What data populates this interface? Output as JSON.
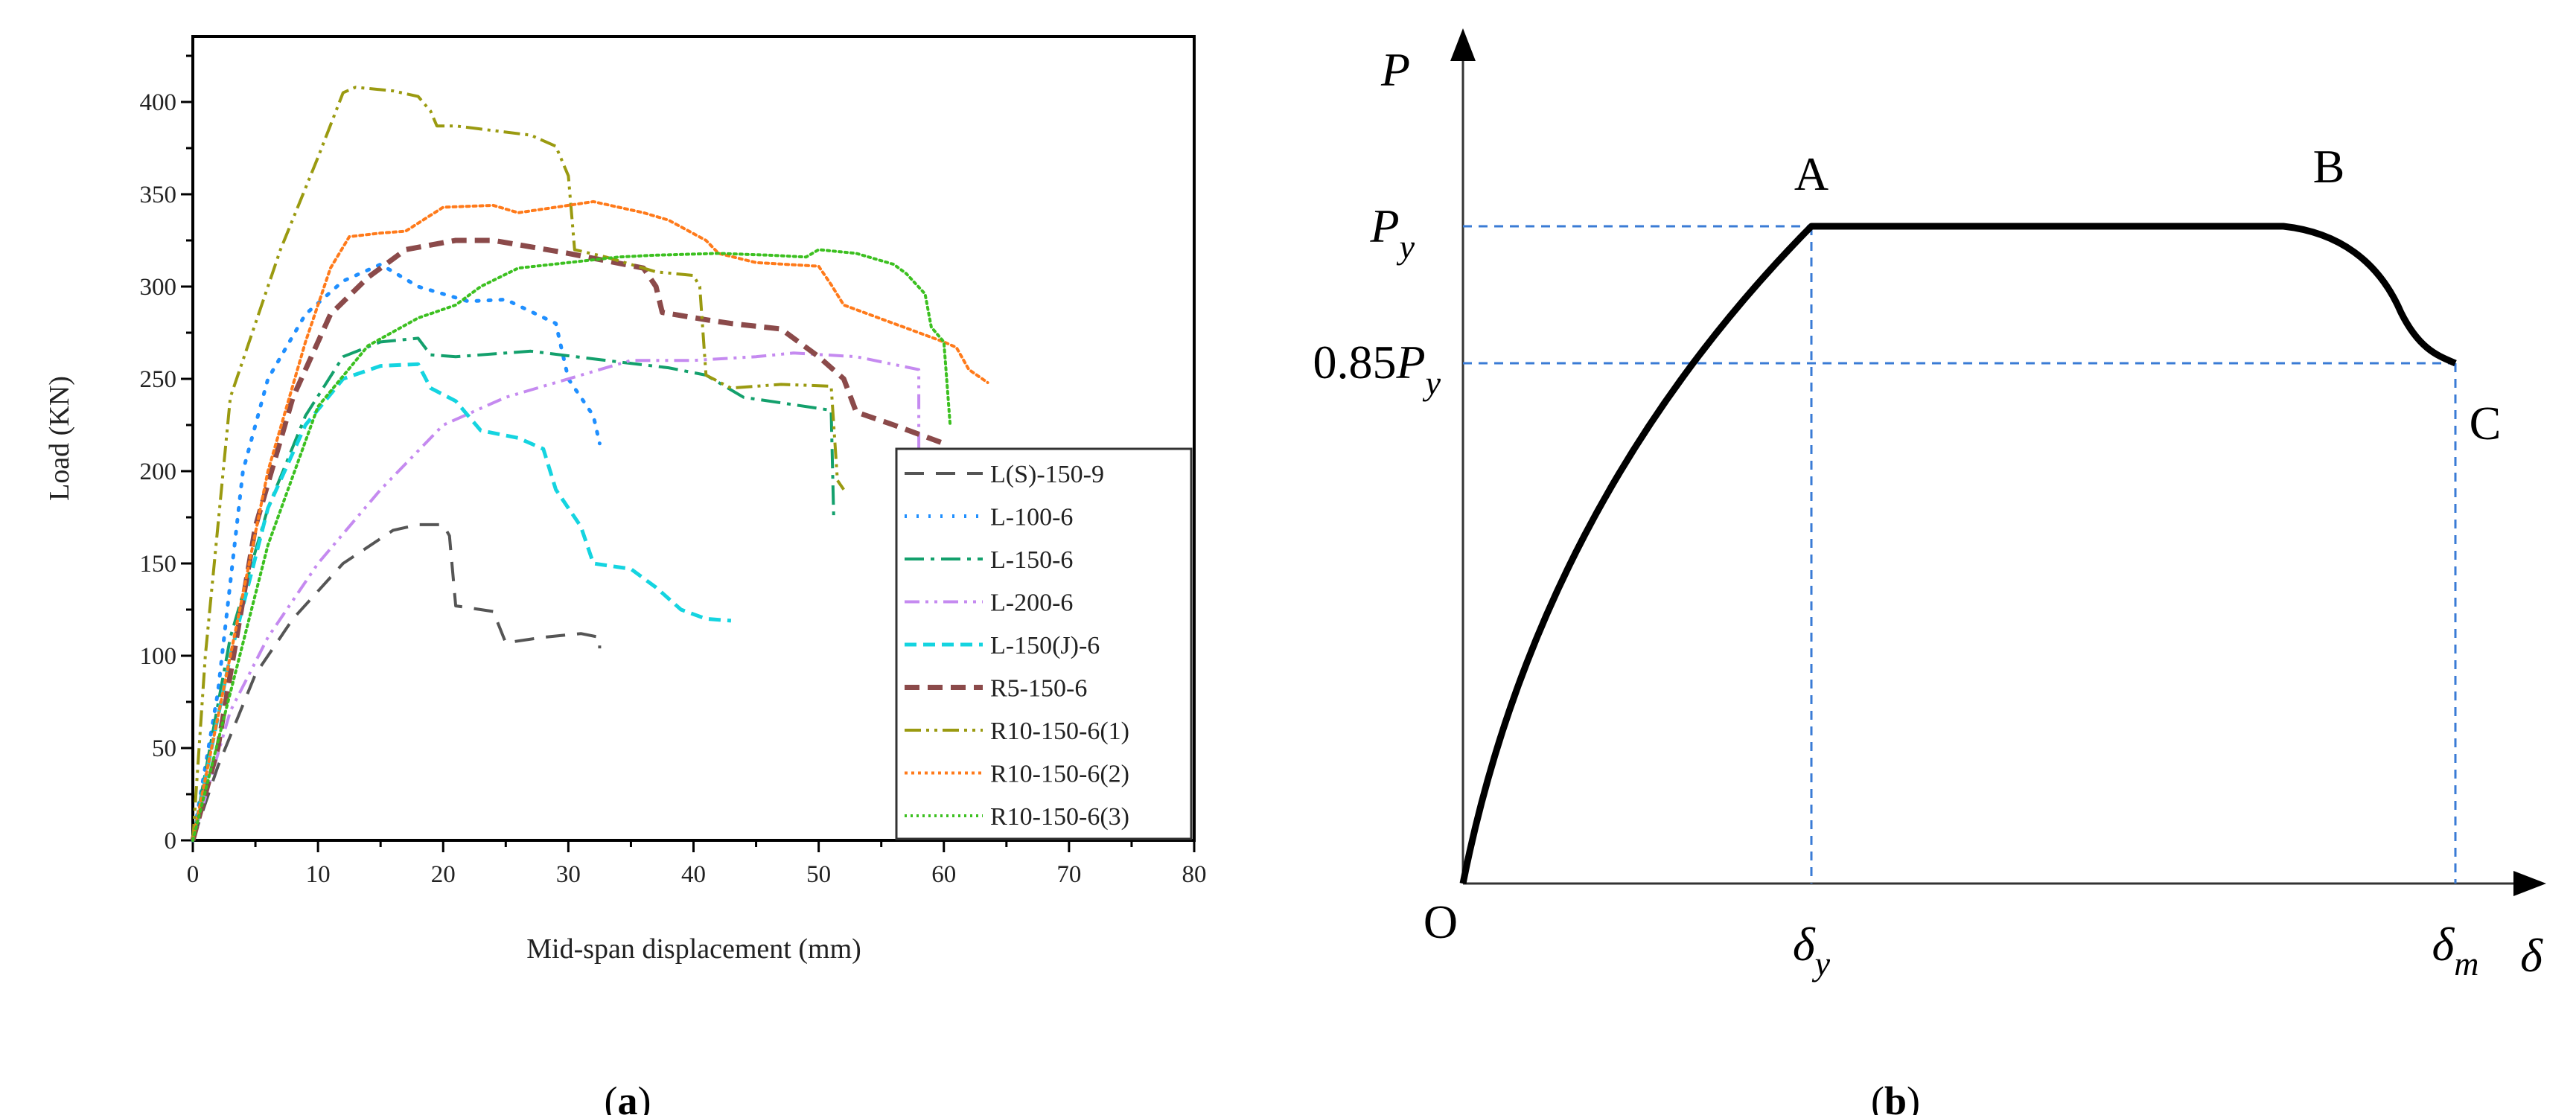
{
  "chart_data": [
    {
      "type": "line",
      "panel_label": "a",
      "title": "",
      "xlabel": "Mid-span displacement (mm)",
      "ylabel": "Load (KN)",
      "xlim": [
        0,
        80
      ],
      "ylim": [
        0,
        410
      ],
      "xticks": [
        0,
        10,
        20,
        30,
        40,
        50,
        60,
        70,
        80
      ],
      "yticks": [
        0,
        50,
        100,
        150,
        200,
        250,
        300,
        350,
        400
      ],
      "grid": false,
      "legend_position": "bottom-right",
      "series": [
        {
          "name": "L(S)-150-9",
          "color": "#555555",
          "dash": "26 16",
          "width": 4,
          "points": [
            [
              0,
              0
            ],
            [
              2,
              40
            ],
            [
              5,
              90
            ],
            [
              8,
              120
            ],
            [
              12,
              150
            ],
            [
              16,
              168
            ],
            [
              18,
              171
            ],
            [
              20,
              171
            ],
            [
              20.5,
              165
            ],
            [
              21,
              127
            ],
            [
              24,
              124
            ],
            [
              25,
              107
            ],
            [
              28,
              110
            ],
            [
              31,
              112
            ],
            [
              32.5,
              110
            ],
            [
              32.5,
              104
            ]
          ]
        },
        {
          "name": "L-100-6",
          "color": "#1f8fff",
          "dash": "3 13",
          "width": 5,
          "points": [
            [
              0,
              0
            ],
            [
              2,
              80
            ],
            [
              4,
              200
            ],
            [
              6,
              250
            ],
            [
              9,
              285
            ],
            [
              12,
              303
            ],
            [
              15,
              312
            ],
            [
              18,
              300
            ],
            [
              22,
              292
            ],
            [
              25,
              293
            ],
            [
              29,
              280
            ],
            [
              30,
              250
            ],
            [
              32,
              230
            ],
            [
              32.5,
              215
            ]
          ]
        },
        {
          "name": "L-150-6",
          "color": "#13a06c",
          "dash": "26 9 5 9",
          "width": 4,
          "points": [
            [
              0,
              0
            ],
            [
              3,
              110
            ],
            [
              6,
              180
            ],
            [
              9,
              230
            ],
            [
              12,
              262
            ],
            [
              15,
              270
            ],
            [
              18,
              272
            ],
            [
              19,
              263
            ],
            [
              21,
              262
            ],
            [
              27,
              265
            ],
            [
              33,
              260
            ],
            [
              38,
              256
            ],
            [
              41,
              252
            ],
            [
              44,
              240
            ],
            [
              48,
              236
            ],
            [
              51,
              233
            ],
            [
              51.2,
              175
            ]
          ]
        },
        {
          "name": "L-200-6",
          "color": "#c58af0",
          "dash": "20 8 4 8 4 8",
          "width": 4,
          "points": [
            [
              0,
              0
            ],
            [
              3,
              70
            ],
            [
              6,
              110
            ],
            [
              10,
              150
            ],
            [
              15,
              190
            ],
            [
              20,
              225
            ],
            [
              25,
              240
            ],
            [
              30,
              250
            ],
            [
              35,
              260
            ],
            [
              40,
              260
            ],
            [
              45,
              262
            ],
            [
              48,
              264
            ],
            [
              53,
              262
            ],
            [
              58,
              255
            ],
            [
              58,
              195
            ]
          ]
        },
        {
          "name": "L-150(J)-6",
          "color": "#14d4e0",
          "dash": "16 9",
          "width": 5,
          "points": [
            [
              0,
              0
            ],
            [
              3,
              100
            ],
            [
              6,
              180
            ],
            [
              9,
              225
            ],
            [
              12,
              250
            ],
            [
              15,
              257
            ],
            [
              18,
              258
            ],
            [
              19,
              245
            ],
            [
              21,
              238
            ],
            [
              23,
              222
            ],
            [
              26,
              218
            ],
            [
              28,
              212
            ],
            [
              29,
              190
            ],
            [
              31,
              170
            ],
            [
              32,
              150
            ],
            [
              35,
              147
            ],
            [
              37,
              137
            ],
            [
              39,
              125
            ],
            [
              41,
              120
            ],
            [
              43,
              119
            ]
          ]
        },
        {
          "name": "R5-150-6",
          "color": "#8b4a4a",
          "dash": "20 11",
          "width": 7,
          "points": [
            [
              0,
              0
            ],
            [
              2,
              50
            ],
            [
              5,
              170
            ],
            [
              8,
              240
            ],
            [
              11,
              285
            ],
            [
              14,
              305
            ],
            [
              17,
              320
            ],
            [
              21,
              325
            ],
            [
              24,
              325
            ],
            [
              30,
              318
            ],
            [
              36,
              310
            ],
            [
              37,
              300
            ],
            [
              37.5,
              286
            ],
            [
              41,
              282
            ],
            [
              43,
              280
            ],
            [
              47,
              277
            ],
            [
              50,
              262
            ],
            [
              52,
              250
            ],
            [
              53,
              232
            ],
            [
              56,
              225
            ],
            [
              60,
              215
            ]
          ]
        },
        {
          "name": "R10-150-6(1)",
          "color": "#9a9a10",
          "dash": "22 7 4 7 4 7",
          "width": 4,
          "points": [
            [
              0,
              0
            ],
            [
              1,
              100
            ],
            [
              3,
              240
            ],
            [
              7,
              320
            ],
            [
              10,
              370
            ],
            [
              12,
              405
            ],
            [
              13,
              408
            ],
            [
              16,
              406
            ],
            [
              18,
              403
            ],
            [
              19,
              395
            ],
            [
              19.5,
              387
            ],
            [
              21,
              387
            ],
            [
              27,
              382
            ],
            [
              29,
              376
            ],
            [
              30,
              360
            ],
            [
              30.5,
              320
            ],
            [
              33,
              316
            ],
            [
              37,
              308
            ],
            [
              40,
              306
            ],
            [
              40.5,
              300
            ],
            [
              41,
              252
            ],
            [
              43,
              245
            ],
            [
              47,
              247
            ],
            [
              51,
              246
            ],
            [
              51.5,
              195
            ],
            [
              52,
              190
            ]
          ]
        },
        {
          "name": "R10-150-6(2)",
          "color": "#ff7a1a",
          "dash": "4 5",
          "width": 4,
          "points": [
            [
              0,
              0
            ],
            [
              3,
              100
            ],
            [
              6,
              200
            ],
            [
              9,
              270
            ],
            [
              11,
              310
            ],
            [
              12.5,
              327
            ],
            [
              15,
              329
            ],
            [
              17,
              330
            ],
            [
              20,
              343
            ],
            [
              24,
              344
            ],
            [
              26,
              340
            ],
            [
              30,
              344
            ],
            [
              32,
              346
            ],
            [
              36,
              340
            ],
            [
              38,
              336
            ],
            [
              41,
              325
            ],
            [
              42,
              318
            ],
            [
              45,
              313
            ],
            [
              50,
              311
            ],
            [
              51,
              301
            ],
            [
              52,
              290
            ],
            [
              56,
              280
            ],
            [
              60,
              270
            ],
            [
              61,
              267
            ],
            [
              62,
              255
            ],
            [
              63.5,
              248
            ]
          ]
        },
        {
          "name": "R10-150-6(3)",
          "color": "#3cc020",
          "dash": "3 5",
          "width": 4,
          "points": [
            [
              0,
              0
            ],
            [
              3,
              80
            ],
            [
              6,
              160
            ],
            [
              10,
              235
            ],
            [
              14,
              268
            ],
            [
              18,
              283
            ],
            [
              21,
              290
            ],
            [
              23,
              300
            ],
            [
              26,
              310
            ],
            [
              30,
              313
            ],
            [
              34,
              316
            ],
            [
              37,
              317
            ],
            [
              42,
              318
            ],
            [
              46,
              317
            ],
            [
              49,
              316
            ],
            [
              50,
              320
            ],
            [
              53,
              318
            ],
            [
              56,
              312
            ],
            [
              57,
              307
            ],
            [
              58.5,
              296
            ],
            [
              59,
              278
            ],
            [
              60,
              270
            ],
            [
              60.5,
              225
            ]
          ]
        }
      ]
    },
    {
      "type": "diagram",
      "panel_label": "b",
      "y_axis_label": "P",
      "x_axis_label": "δ",
      "origin_label": "O",
      "point_labels": [
        "A",
        "B",
        "C"
      ],
      "y_levels": {
        "py_base": "P",
        "py_sub": "y",
        "p085_prefix": "0.85",
        "p085_base": "P",
        "p085_sub": "y"
      },
      "x_levels": {
        "dy_base": "δ",
        "dy_sub": "y",
        "dm_base": "δ",
        "dm_sub": "m"
      },
      "guide_color": "#3a7bd5"
    }
  ]
}
